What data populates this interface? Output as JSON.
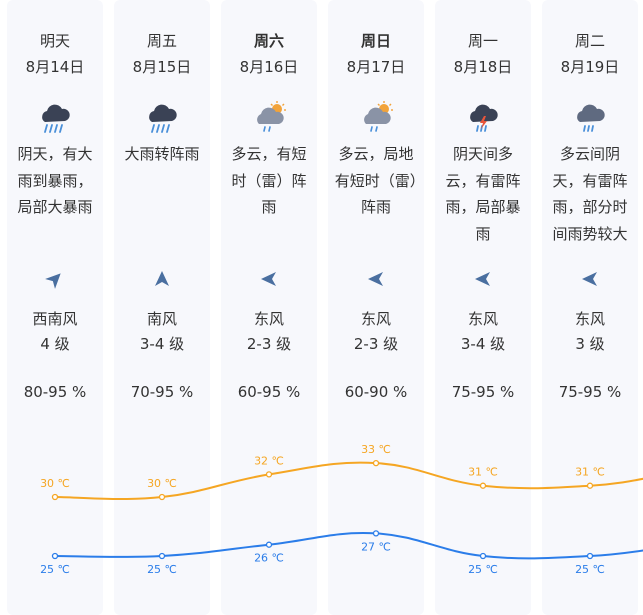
{
  "days": [
    {
      "day": "明天",
      "date": "8月14日",
      "weather_icon": "heavy-rain-icon",
      "description": "阴天，有大雨到暴雨，局部大暴雨",
      "wind_direction_icon": "wind-arrow-icon",
      "wind_direction_deg": 45,
      "wind_name": "西南风",
      "wind_level": "4 级",
      "humidity": "80-95 %",
      "bold": false
    },
    {
      "day": "周五",
      "date": "8月15日",
      "weather_icon": "heavy-rain-icon",
      "description": "大雨转阵雨",
      "wind_direction_icon": "wind-arrow-icon",
      "wind_direction_deg": 0,
      "wind_name": "南风",
      "wind_level": "3-4 级",
      "humidity": "70-95 %",
      "bold": false
    },
    {
      "day": "周六",
      "date": "8月16日",
      "weather_icon": "sun-cloud-rain-icon",
      "description": "多云，有短时（雷）阵雨",
      "wind_direction_icon": "wind-arrow-icon",
      "wind_direction_deg": -90,
      "wind_name": "东风",
      "wind_level": "2-3 级",
      "humidity": "60-95 %",
      "bold": true
    },
    {
      "day": "周日",
      "date": "8月17日",
      "weather_icon": "sun-cloud-rain-icon",
      "description": "多云，局地有短时（雷）阵雨",
      "wind_direction_icon": "wind-arrow-icon",
      "wind_direction_deg": -90,
      "wind_name": "东风",
      "wind_level": "2-3 级",
      "humidity": "60-90 %",
      "bold": true
    },
    {
      "day": "周一",
      "date": "8月18日",
      "weather_icon": "thunderstorm-icon",
      "description": "阴天间多云，有雷阵雨，局部暴雨",
      "wind_direction_icon": "wind-arrow-icon",
      "wind_direction_deg": -90,
      "wind_name": "东风",
      "wind_level": "3-4 级",
      "humidity": "75-95 %",
      "bold": false
    },
    {
      "day": "周二",
      "date": "8月19日",
      "weather_icon": "cloud-rain-icon",
      "description": "多云间阴天，有雷阵雨，部分时间雨势较大",
      "wind_direction_icon": "wind-arrow-icon",
      "wind_direction_deg": -90,
      "wind_name": "东风",
      "wind_level": "3 级",
      "humidity": "75-95 %",
      "bold": false
    }
  ],
  "chart_data": {
    "type": "line",
    "categories": [
      "8月14日",
      "8月15日",
      "8月16日",
      "8月17日",
      "8月18日",
      "8月19日"
    ],
    "series": [
      {
        "values": [
          30,
          30,
          32,
          33,
          31,
          31
        ],
        "labels": [
          "30 ℃",
          "30 ℃",
          "32 ℃",
          "33 ℃",
          "31 ℃",
          "31 ℃"
        ],
        "color": "#f5a623"
      },
      {
        "values": [
          25,
          25,
          26,
          27,
          25,
          25
        ],
        "labels": [
          "25 ℃",
          "25 ℃",
          "26 ℃",
          "27 ℃",
          "25 ℃",
          "25 ℃"
        ],
        "color": "#2b7de9"
      }
    ]
  }
}
